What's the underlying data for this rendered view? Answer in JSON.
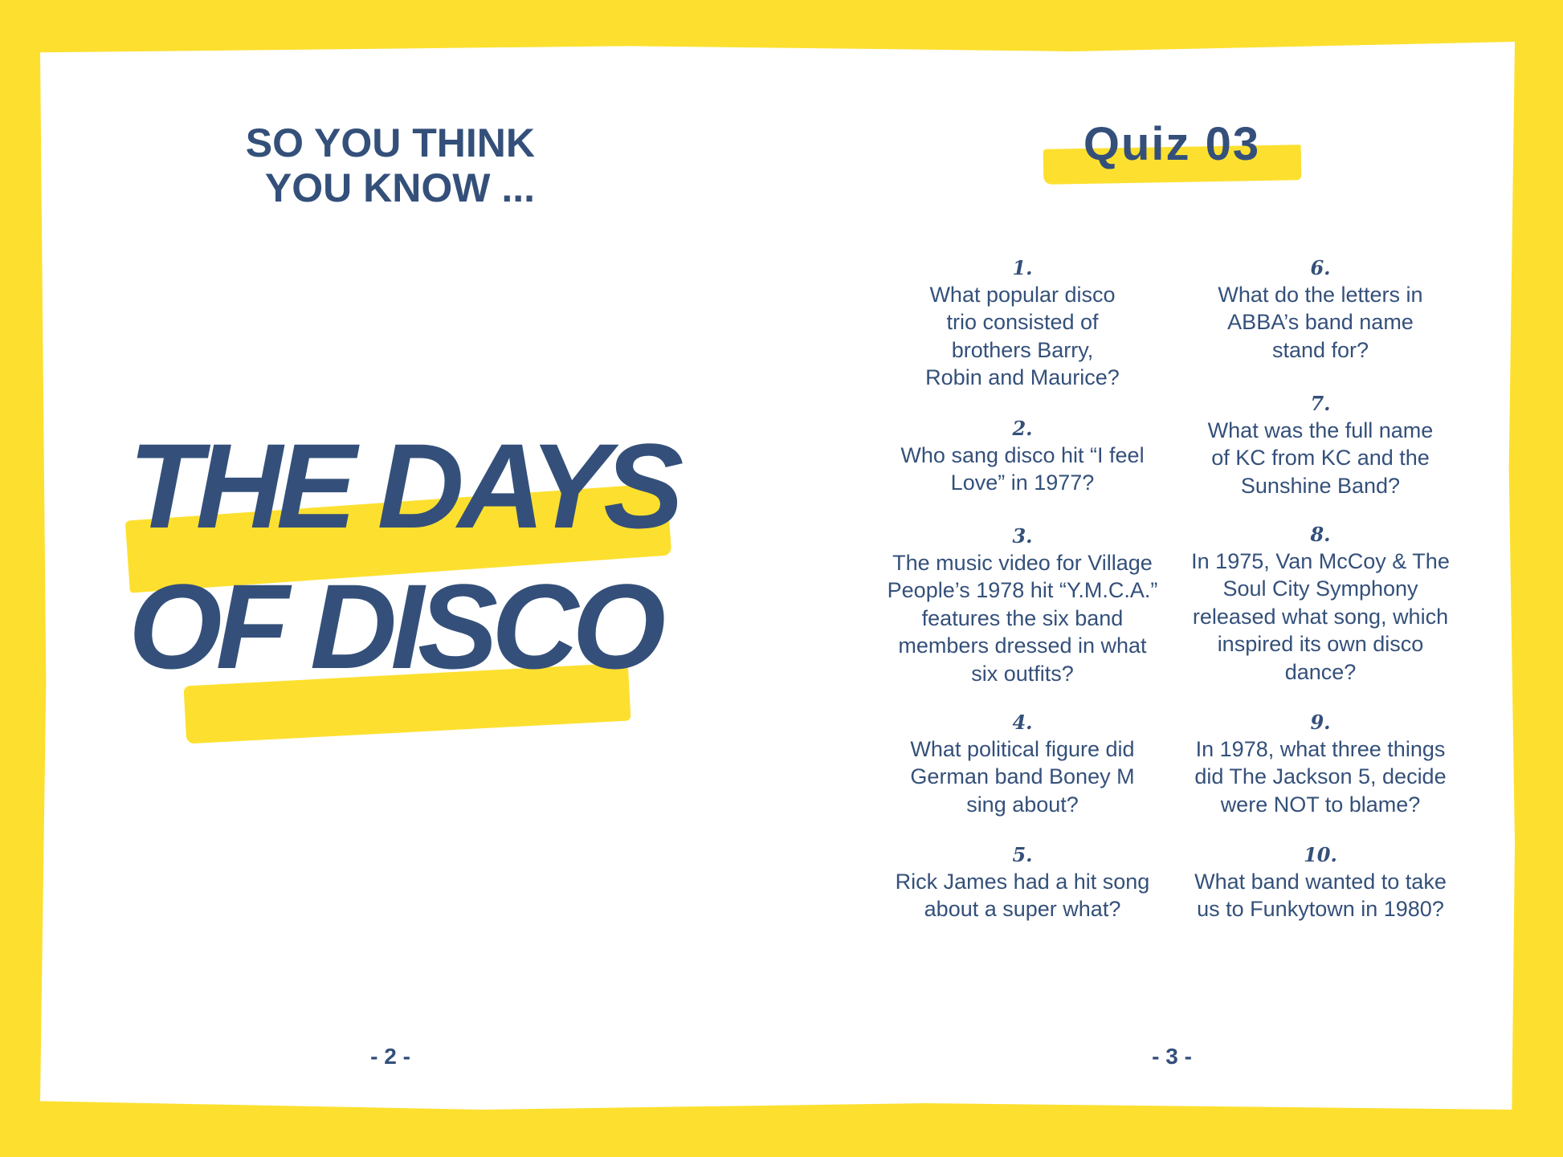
{
  "colors": {
    "yellow": "#fde02f",
    "navy": "#34507a"
  },
  "left_page": {
    "kicker": [
      "SO YOU THINK",
      "YOU KNOW ..."
    ],
    "title": [
      "THE DAYS",
      "OF DISCO"
    ],
    "page_number": "- 2 -"
  },
  "right_page": {
    "heading": "Quiz 03",
    "questions": [
      {
        "number": "1.",
        "text": "What popular disco trio consisted of brothers Barry, Robin and Maurice?"
      },
      {
        "number": "2.",
        "text": "Who sang disco hit “I feel Love” in 1977?"
      },
      {
        "number": "3.",
        "text": "The music video for Village People’s 1978 hit “Y.M.C.A.” features the six band members dressed in what six outfits?"
      },
      {
        "number": "4.",
        "text": "What political figure did German band Boney M sing about?"
      },
      {
        "number": "5.",
        "text": "Rick James had a hit song about a super what?"
      },
      {
        "number": "6.",
        "text": "What do the letters in ABBA’s band name stand for?"
      },
      {
        "number": "7.",
        "text": "What was the full name of KC from KC and the Sunshine Band?"
      },
      {
        "number": "8.",
        "text": "In 1975, Van McCoy & The Soul City Symphony released what song, which inspired its own disco dance?"
      },
      {
        "number": "9.",
        "text": "In 1978, what three things did The Jackson 5, decide were NOT to blame?"
      },
      {
        "number": "10.",
        "text": "What band wanted to take us to Funkytown in 1980?"
      }
    ],
    "page_number": "- 3 -"
  }
}
